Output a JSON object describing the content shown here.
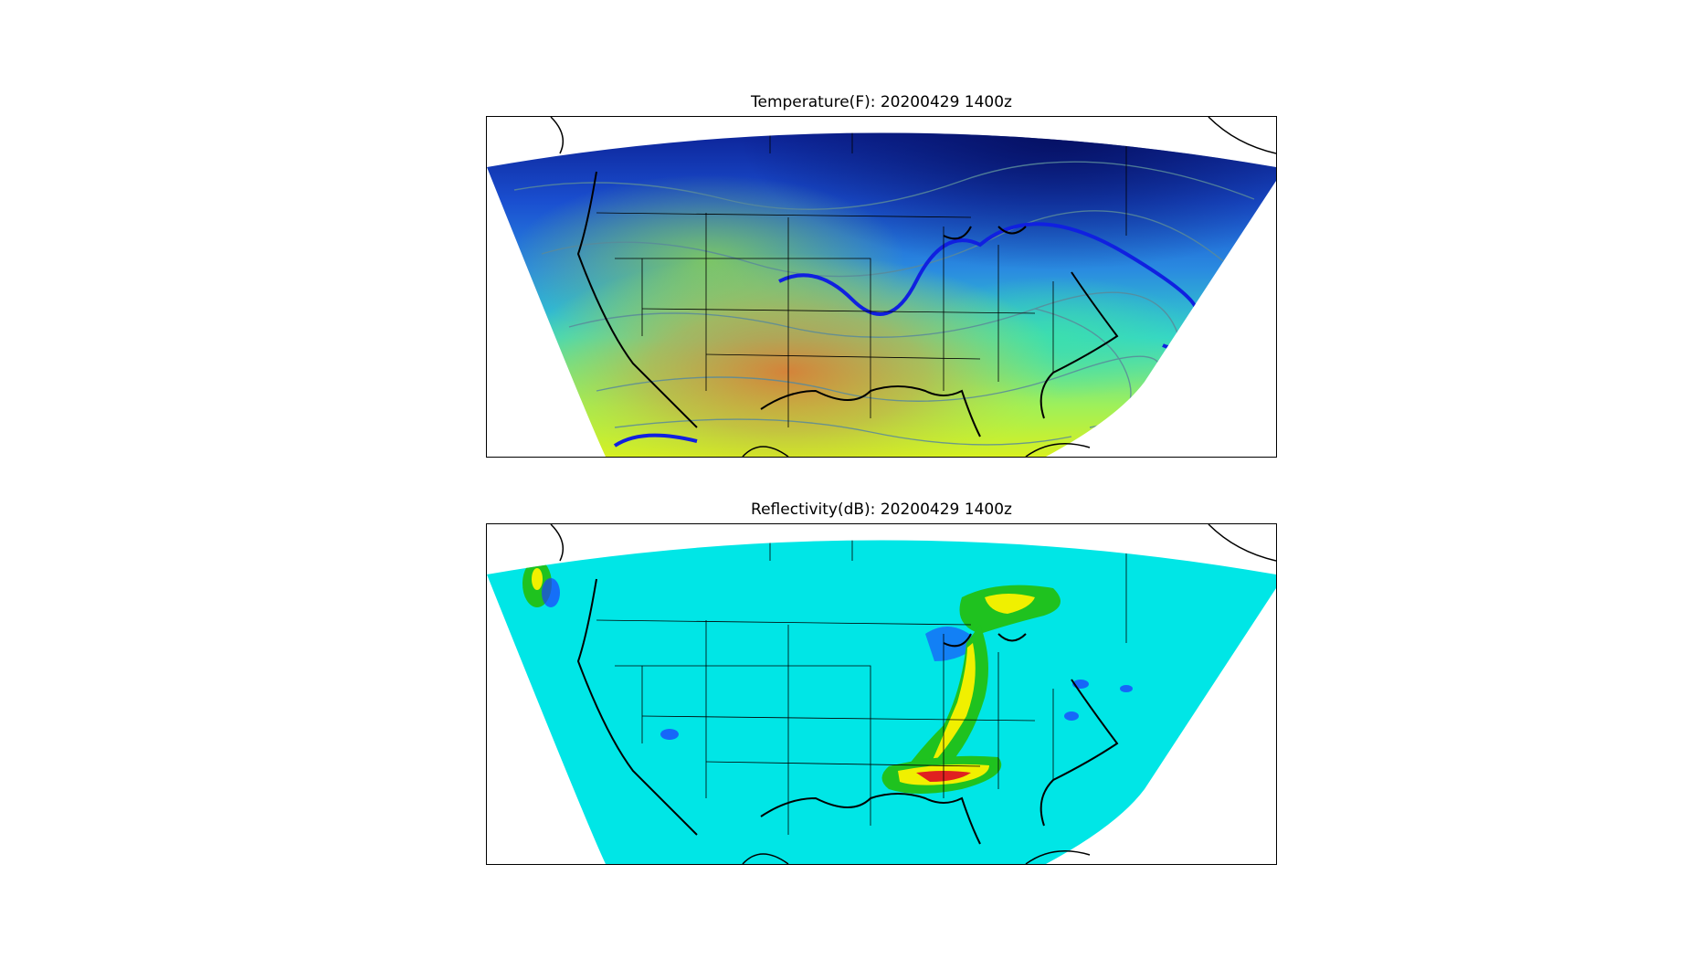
{
  "panels": [
    {
      "id": "temperature",
      "title": "Temperature(F): 20200429 1400z"
    },
    {
      "id": "reflectivity",
      "title": "Reflectivity(dB): 20200429 1400z"
    }
  ],
  "colors": {
    "temp_cold": "#0a1a8c",
    "temp_mid": "#2a8be0",
    "temp_cool": "#35d6c8",
    "temp_warm": "#c8f02a",
    "temp_hot": "#e07830",
    "refl_background": "#00e6e6",
    "refl_light": "#1e3cff",
    "refl_moderate": "#1fc21f",
    "refl_heavy": "#f0f000",
    "refl_intense": "#e02020",
    "contour_line": "#5a8a9a",
    "freezing_line": "#1020e0",
    "borders": "#000000"
  }
}
